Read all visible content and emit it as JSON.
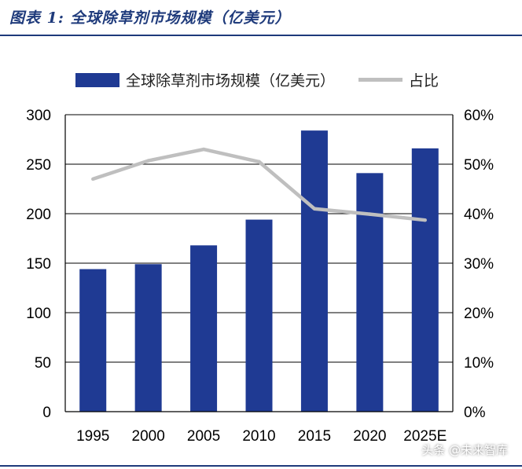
{
  "figure": {
    "title": "图表 1:  全球除草剂市场规模（亿美元）"
  },
  "watermark": "头条 @未来智库",
  "colors": {
    "bar": "#1f3a93",
    "line": "#bfbfbf",
    "title": "#1e3a7b"
  },
  "chart_data": {
    "type": "bar",
    "title": "",
    "categories": [
      "1995",
      "2000",
      "2005",
      "2010",
      "2015",
      "2020",
      "2025E"
    ],
    "series": [
      {
        "name": "全球除草剂市场规模（亿美元）",
        "type": "bar",
        "axis": "left",
        "values": [
          144,
          149,
          168,
          194,
          284,
          241,
          266
        ]
      },
      {
        "name": "占比",
        "type": "line",
        "axis": "right",
        "values": [
          47,
          50.7,
          53,
          50.5,
          41,
          39.9,
          38.7
        ]
      }
    ],
    "y_left": {
      "min": 0,
      "max": 300,
      "ticks": [
        "0",
        "50",
        "100",
        "150",
        "200",
        "250",
        "300"
      ]
    },
    "y_right": {
      "min": 0,
      "max": 60,
      "ticks": [
        "0%",
        "10%",
        "20%",
        "30%",
        "40%",
        "50%",
        "60%"
      ]
    },
    "grid": true,
    "legend": "top"
  }
}
